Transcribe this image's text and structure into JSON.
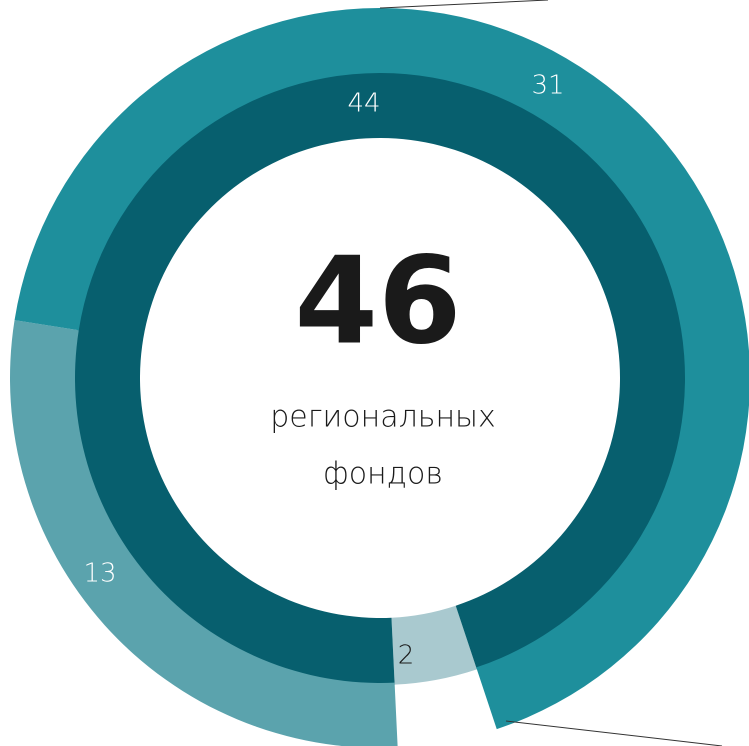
{
  "chart_data": {
    "type": "donut",
    "center_value": 46,
    "center_lines": [
      "региональных",
      "фондов"
    ],
    "inner": {
      "values": [
        44,
        2
      ],
      "colors": [
        "#075f6e",
        "#a9c9cf"
      ]
    },
    "outer": {
      "values": [
        31,
        13
      ],
      "colors": [
        "#1e8f9c",
        "#5ba3ad"
      ]
    }
  }
}
